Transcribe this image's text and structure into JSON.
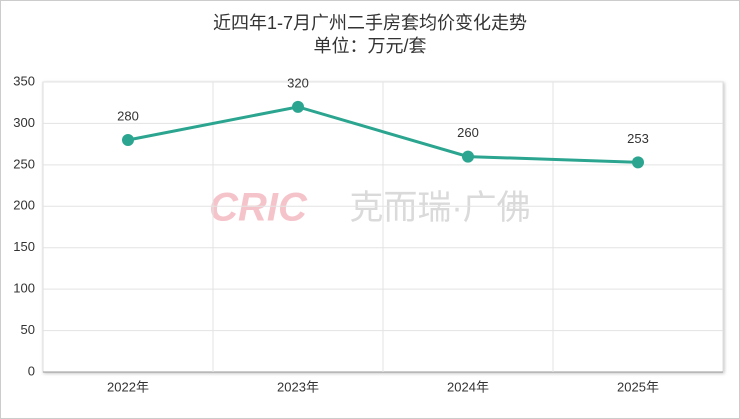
{
  "chart_data": {
    "type": "line",
    "title": "近四年1-7月广州二手房套均价变化走势",
    "subtitle": "单位：万元/套",
    "watermark_logo": "CRIC",
    "watermark_text": "克而瑞·广佛",
    "categories": [
      "2022年",
      "2023年",
      "2024年",
      "2025年"
    ],
    "series": [
      {
        "name": "套均价",
        "color": "#2ba58f",
        "values": [
          280,
          320,
          260,
          253
        ]
      }
    ],
    "ylim": [
      0,
      350
    ],
    "yticks": [
      0,
      50,
      100,
      150,
      200,
      250,
      300,
      350
    ],
    "grid": true
  }
}
